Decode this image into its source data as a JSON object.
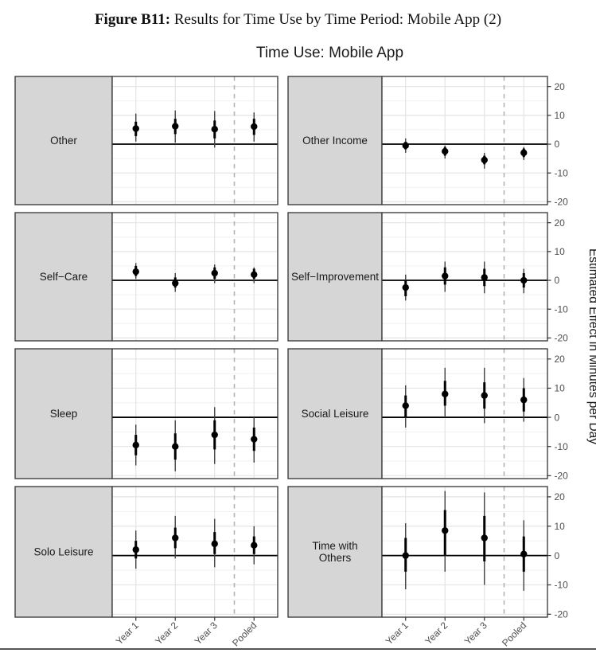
{
  "caption": {
    "prefix": "Figure B11:",
    "text": "Results for Time Use by Time Period: Mobile App (2)"
  },
  "colors": {
    "strip_bg": "#d6d6d6",
    "strip_text": "#1a1a1a",
    "panel_border": "#333333",
    "grid_major": "#e4e4e4",
    "grid_minor": "#f1f1f1",
    "zero_line": "#000000",
    "dashed_line": "#b3b3b3",
    "point": "#000000",
    "ci_outer": "#404040",
    "tick": "#333333",
    "axis_text": "#4d4d4d"
  },
  "chart_data": {
    "type": "pointrange",
    "title": "Time Use: Mobile App",
    "ylabel": "Estimated Effect in Minutes per Day",
    "ylabel_position": "right",
    "categories": [
      "Year 1",
      "Year 2",
      "Year 3",
      "Pooled"
    ],
    "ylim": [
      -21,
      23.5
    ],
    "yticks": [
      20,
      10,
      0,
      -10,
      -20
    ],
    "grid": "major+minor horizontal, major vertical",
    "reference_hline": 0,
    "dashed_vline_between": [
      "Year 3",
      "Pooled"
    ],
    "facet_layout": "4 rows x 2 columns, left strip labels",
    "panels": [
      {
        "label": "Other",
        "estimates": [
          {
            "period": "Year 1",
            "value": 5.4,
            "ci_inner": [
              2.8,
              7.8
            ],
            "ci_outer": [
              0.9,
              10.6
            ]
          },
          {
            "period": "Year 2",
            "value": 6.2,
            "ci_inner": [
              3.5,
              8.8
            ],
            "ci_outer": [
              0.5,
              11.7
            ]
          },
          {
            "period": "Year 3",
            "value": 5.2,
            "ci_inner": [
              2.0,
              8.2
            ],
            "ci_outer": [
              -1.2,
              11.5
            ]
          },
          {
            "period": "Pooled",
            "value": 6.1,
            "ci_inner": [
              3.2,
              8.8
            ],
            "ci_outer": [
              0.9,
              11.0
            ]
          }
        ]
      },
      {
        "label": "Other Income",
        "estimates": [
          {
            "period": "Year 1",
            "value": -0.5,
            "ci_inner": [
              -1.8,
              0.8
            ],
            "ci_outer": [
              -3.0,
              2.0
            ]
          },
          {
            "period": "Year 2",
            "value": -2.5,
            "ci_inner": [
              -4.0,
              -1.0
            ],
            "ci_outer": [
              -5.0,
              -0.5
            ]
          },
          {
            "period": "Year 3",
            "value": -5.5,
            "ci_inner": [
              -7.0,
              -4.0
            ],
            "ci_outer": [
              -8.5,
              -3.0
            ]
          },
          {
            "period": "Pooled",
            "value": -3.0,
            "ci_inner": [
              -4.5,
              -1.5
            ],
            "ci_outer": [
              -5.5,
              -1.0
            ]
          }
        ]
      },
      {
        "label": "Self−Care",
        "estimates": [
          {
            "period": "Year 1",
            "value": 3.0,
            "ci_inner": [
              1.5,
              5.0
            ],
            "ci_outer": [
              0.5,
              6.0
            ]
          },
          {
            "period": "Year 2",
            "value": -1.0,
            "ci_inner": [
              -2.5,
              1.0
            ],
            "ci_outer": [
              -4.0,
              2.5
            ]
          },
          {
            "period": "Year 3",
            "value": 2.5,
            "ci_inner": [
              0.5,
              4.5
            ],
            "ci_outer": [
              -1.0,
              5.5
            ]
          },
          {
            "period": "Pooled",
            "value": 2.0,
            "ci_inner": [
              0.5,
              4.0
            ],
            "ci_outer": [
              -1.0,
              4.5
            ]
          }
        ]
      },
      {
        "label": "Self−Improvement",
        "estimates": [
          {
            "period": "Year 1",
            "value": -2.5,
            "ci_inner": [
              -5.5,
              0.0
            ],
            "ci_outer": [
              -7.0,
              2.0
            ]
          },
          {
            "period": "Year 2",
            "value": 1.5,
            "ci_inner": [
              -1.5,
              4.5
            ],
            "ci_outer": [
              -4.0,
              6.5
            ]
          },
          {
            "period": "Year 3",
            "value": 1.0,
            "ci_inner": [
              -2.0,
              4.0
            ],
            "ci_outer": [
              -4.5,
              6.5
            ]
          },
          {
            "period": "Pooled",
            "value": 0.0,
            "ci_inner": [
              -2.5,
              2.5
            ],
            "ci_outer": [
              -4.5,
              4.0
            ]
          }
        ]
      },
      {
        "label": "Sleep",
        "estimates": [
          {
            "period": "Year 1",
            "value": -9.5,
            "ci_inner": [
              -13.0,
              -6.0
            ],
            "ci_outer": [
              -16.5,
              -2.5
            ]
          },
          {
            "period": "Year 2",
            "value": -10.0,
            "ci_inner": [
              -14.5,
              -5.5
            ],
            "ci_outer": [
              -18.5,
              -1.0
            ]
          },
          {
            "period": "Year 3",
            "value": -6.0,
            "ci_inner": [
              -11.0,
              -1.0
            ],
            "ci_outer": [
              -16.0,
              3.5
            ]
          },
          {
            "period": "Pooled",
            "value": -7.5,
            "ci_inner": [
              -11.5,
              -3.5
            ],
            "ci_outer": [
              -15.5,
              0.0
            ]
          }
        ]
      },
      {
        "label": "Social Leisure",
        "estimates": [
          {
            "period": "Year 1",
            "value": 4.0,
            "ci_inner": [
              0.0,
              7.5
            ],
            "ci_outer": [
              -3.5,
              11.0
            ]
          },
          {
            "period": "Year 2",
            "value": 8.0,
            "ci_inner": [
              4.0,
              12.5
            ],
            "ci_outer": [
              0.0,
              17.0
            ]
          },
          {
            "period": "Year 3",
            "value": 7.5,
            "ci_inner": [
              3.0,
              12.0
            ],
            "ci_outer": [
              -2.0,
              17.0
            ]
          },
          {
            "period": "Pooled",
            "value": 6.0,
            "ci_inner": [
              2.0,
              10.0
            ],
            "ci_outer": [
              -1.5,
              13.5
            ]
          }
        ]
      },
      {
        "label": "Solo Leisure",
        "estimates": [
          {
            "period": "Year 1",
            "value": 2.0,
            "ci_inner": [
              -1.0,
              5.0
            ],
            "ci_outer": [
              -4.5,
              8.5
            ]
          },
          {
            "period": "Year 2",
            "value": 6.0,
            "ci_inner": [
              2.5,
              9.5
            ],
            "ci_outer": [
              -1.0,
              13.5
            ]
          },
          {
            "period": "Year 3",
            "value": 4.0,
            "ci_inner": [
              0.5,
              8.0
            ],
            "ci_outer": [
              -4.0,
              12.5
            ]
          },
          {
            "period": "Pooled",
            "value": 3.5,
            "ci_inner": [
              0.5,
              6.5
            ],
            "ci_outer": [
              -3.0,
              10.0
            ]
          }
        ]
      },
      {
        "label": "Time with\nOthers",
        "estimates": [
          {
            "period": "Year 1",
            "value": 0.0,
            "ci_inner": [
              -5.5,
              6.0
            ],
            "ci_outer": [
              -11.5,
              11.0
            ]
          },
          {
            "period": "Year 2",
            "value": 8.5,
            "ci_inner": [
              0.0,
              15.5
            ],
            "ci_outer": [
              -5.5,
              22.0
            ]
          },
          {
            "period": "Year 3",
            "value": 6.0,
            "ci_inner": [
              -2.0,
              13.5
            ],
            "ci_outer": [
              -10.0,
              21.5
            ]
          },
          {
            "period": "Pooled",
            "value": 0.5,
            "ci_inner": [
              -5.5,
              6.5
            ],
            "ci_outer": [
              -12.0,
              12.0
            ]
          }
        ]
      }
    ]
  }
}
